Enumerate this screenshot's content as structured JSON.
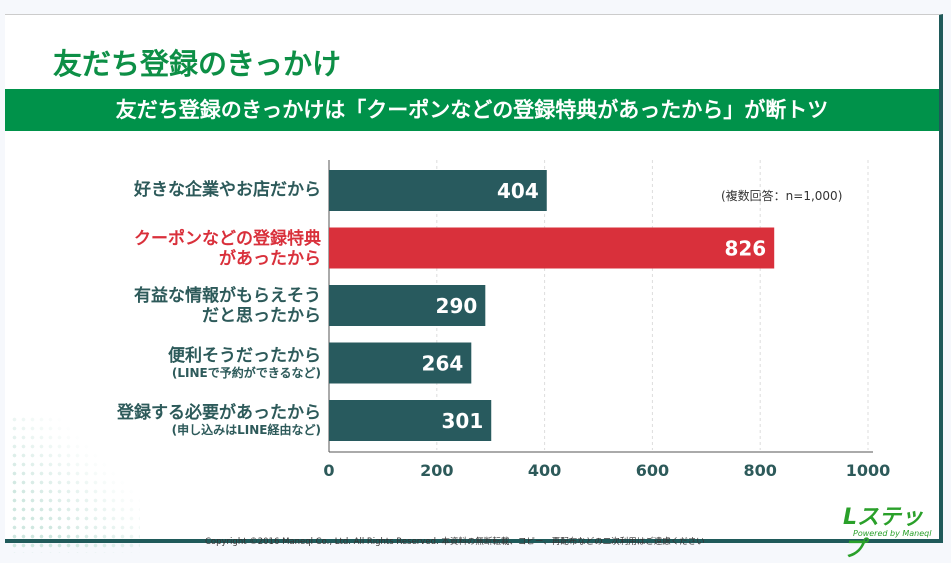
{
  "title": "友だち登録のきっかけ",
  "banner": "友だち登録のきっかけは「クーポンなどの登録特典があったから」が断トツ",
  "note": "(複数回答：n=1,000)",
  "copyright": "Copyright ©2016 Maneql Co., Ltd. All Rights Reserved. 本資料の無断転載、コピー、再配布などの二次利用はご遠慮ください",
  "logo": {
    "text": "Lステップ",
    "sub": "Powered by Maneql"
  },
  "chart_data": {
    "type": "bar",
    "orientation": "horizontal",
    "categories": [
      {
        "line1": "好きな企業やお店だから",
        "line2": ""
      },
      {
        "line1": "クーポンなどの登録特典",
        "line2": "があったから"
      },
      {
        "line1": "有益な情報がもらえそう",
        "line2": "だと思ったから"
      },
      {
        "line1": "便利そうだったから",
        "line2": "(LINEで予約ができるなど)"
      },
      {
        "line1": "登録する必要があったから",
        "line2": "(申し込みはLINE経由など)"
      }
    ],
    "values": [
      404,
      826,
      290,
      264,
      301
    ],
    "highlight_index": 1,
    "xlim": [
      0,
      1000
    ],
    "xticks": [
      "0",
      "200",
      "400",
      "600",
      "800",
      "1000"
    ],
    "grid": true,
    "colors": {
      "bar": "#285a5e",
      "highlight": "#d9303b"
    }
  }
}
